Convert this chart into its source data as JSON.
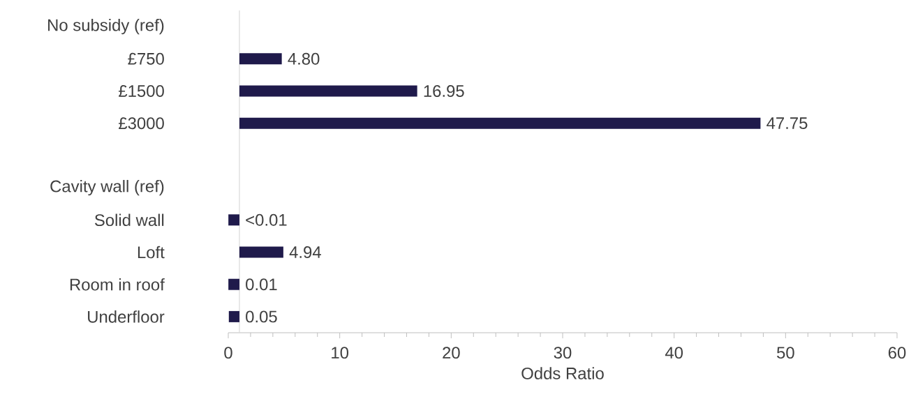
{
  "chart_data": {
    "type": "bar",
    "orientation": "horizontal",
    "xlabel": "Odds Ratio",
    "categories": [
      "No subsidy (ref)",
      "£750",
      "£1500",
      "£3000",
      null,
      "Cavity wall (ref)",
      "Solid wall",
      "Loft",
      "Room in roof",
      "Underfloor"
    ],
    "values": [
      null,
      3.8,
      15.95,
      46.75,
      null,
      null,
      -0.99,
      3.94,
      -0.99,
      -0.95
    ],
    "base": [
      null,
      1,
      1,
      1,
      null,
      null,
      1,
      1,
      1,
      1
    ],
    "value_labels": [
      null,
      "4.80",
      "16.95",
      "47.75",
      null,
      null,
      "<0.01",
      "4.94",
      "0.01",
      "0.05"
    ],
    "color": "#1f1a4b",
    "xlim": [
      0,
      60
    ],
    "xticks": [
      0,
      10,
      20,
      30,
      40,
      50,
      60
    ],
    "ref_lines": [
      {
        "axis": "x",
        "value": 1,
        "color": "#d9d9d9"
      }
    ]
  }
}
